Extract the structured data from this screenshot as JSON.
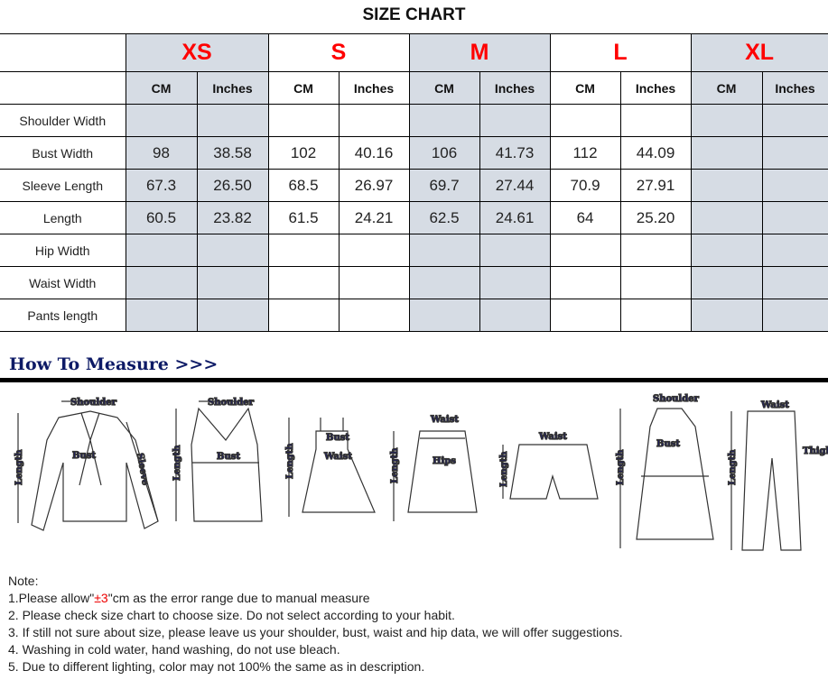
{
  "title": "SIZE CHART",
  "sizes": [
    "XS",
    "S",
    "M",
    "L",
    "XL"
  ],
  "units": [
    "CM",
    "Inches"
  ],
  "rows": [
    {
      "label": "Shoulder Width",
      "values": [
        "",
        "",
        "",
        "",
        "",
        "",
        "",
        "",
        "",
        ""
      ]
    },
    {
      "label": "Bust Width",
      "values": [
        "98",
        "38.58",
        "102",
        "40.16",
        "106",
        "41.73",
        "112",
        "44.09",
        "",
        ""
      ]
    },
    {
      "label": "Sleeve Length",
      "values": [
        "67.3",
        "26.50",
        "68.5",
        "26.97",
        "69.7",
        "27.44",
        "70.9",
        "27.91",
        "",
        ""
      ]
    },
    {
      "label": "Length",
      "values": [
        "60.5",
        "23.82",
        "61.5",
        "24.21",
        "62.5",
        "24.61",
        "64",
        "25.20",
        "",
        ""
      ]
    },
    {
      "label": "Hip Width",
      "values": [
        "",
        "",
        "",
        "",
        "",
        "",
        "",
        "",
        "",
        ""
      ]
    },
    {
      "label": "Waist Width",
      "values": [
        "",
        "",
        "",
        "",
        "",
        "",
        "",
        "",
        "",
        ""
      ]
    },
    {
      "label": "Pants length",
      "values": [
        "",
        "",
        "",
        "",
        "",
        "",
        "",
        "",
        "",
        ""
      ]
    }
  ],
  "colors": {
    "size_label": "#ff0000",
    "shaded_column": "#d6dce4",
    "measure_label": "#1a1a6e"
  },
  "how_to_measure": {
    "heading": "How To Measure >>>",
    "labels": {
      "shoulder": "Shoulder",
      "bust": "Bust",
      "sleeve": "Sleeve",
      "length": "Length",
      "waist": "Waist",
      "hips": "Hips",
      "thigh": "Thigh"
    }
  },
  "notes": {
    "heading": "Note:",
    "n1_pre": "1.Please allow\"",
    "n1_red": "±3",
    "n1_post": "\"cm as the error range due to manual measure",
    "n2": "2. Please check size chart to choose size. Do not select according to your habit.",
    "n3": "3. If still not sure about size, please leave us your shoulder, bust, waist and hip data, we will offer suggestions.",
    "n4": "4. Washing in cold water, hand washing, do not use bleach.",
    "n5": "5. Due to different lighting, color may not 100% the same as in description."
  }
}
